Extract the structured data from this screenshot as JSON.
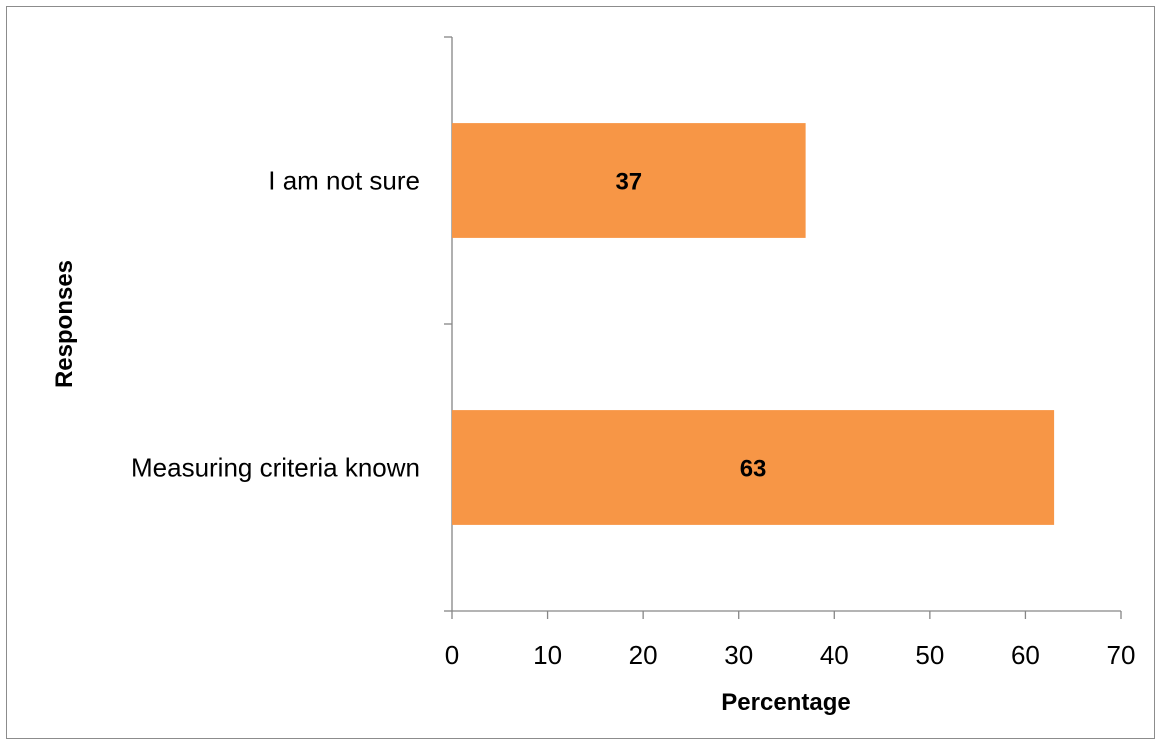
{
  "chart_data": {
    "type": "bar",
    "orientation": "horizontal",
    "categories": [
      "Measuring criteria known",
      "I am not sure"
    ],
    "values": [
      63,
      37
    ],
    "data_labels": [
      "63",
      "37"
    ],
    "xlabel": "Percentage",
    "ylabel": "Responses",
    "xlim": [
      0,
      70
    ],
    "x_ticks": [
      "0",
      "10",
      "20",
      "30",
      "40",
      "50",
      "60",
      "70"
    ],
    "grid": false,
    "legend": "none",
    "bar_color": "#F79646"
  }
}
